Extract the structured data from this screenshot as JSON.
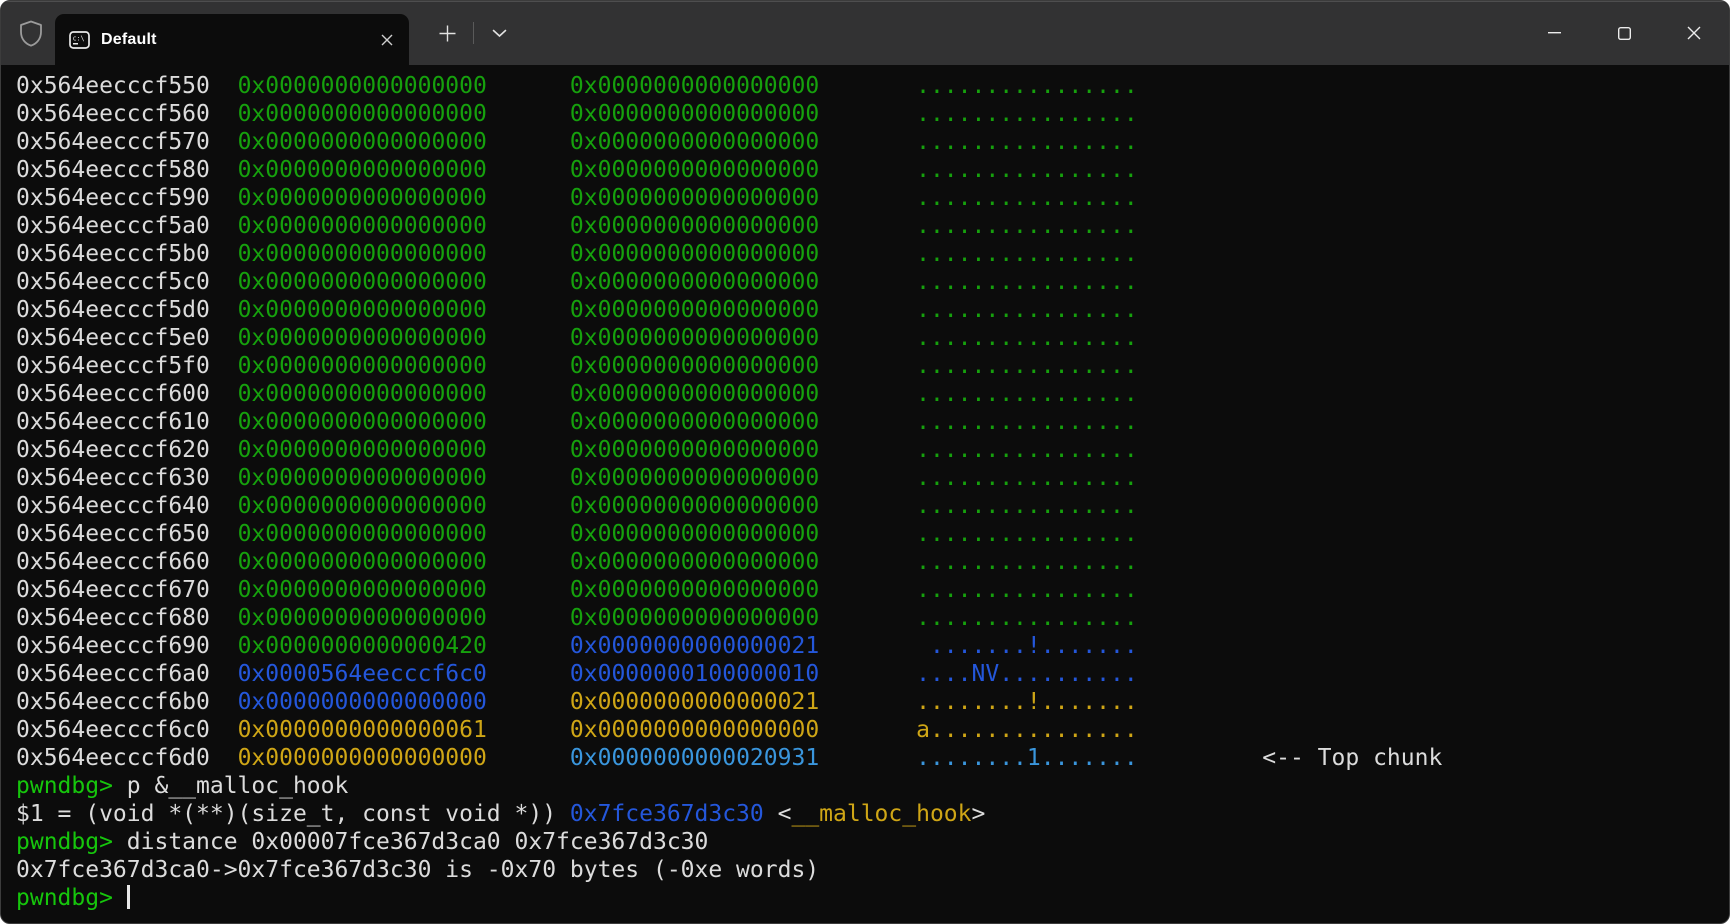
{
  "colors": {
    "bg": "#0C0C0C",
    "titlebar": "#323233",
    "fg": "#DCDCDC",
    "green": "#16A10D",
    "pgreen": "#16C60C",
    "blue": "#2457DB",
    "lblue": "#3A96DD",
    "yellow": "#CFA616"
  },
  "titlebar": {
    "tab": {
      "title": "Default",
      "icon": "command-prompt-icon"
    },
    "icons": {
      "admin": "shield-icon",
      "tab_close": "close-icon",
      "new_tab": "plus-icon",
      "dropdown": "chevron-down-icon",
      "minimize": "minimize-icon",
      "maximize": "maximize-icon",
      "close": "close-icon"
    }
  },
  "terminal": {
    "columns": [
      0,
      16,
      40,
      65,
      90
    ],
    "memory_rows": [
      {
        "addr": "0x564eecccf550",
        "v1": "0x0000000000000000",
        "v1c": "green",
        "v2": "0x0000000000000000",
        "v2c": "green",
        "ascii": "................",
        "asciic": "green",
        "note": ""
      },
      {
        "addr": "0x564eecccf560",
        "v1": "0x0000000000000000",
        "v1c": "green",
        "v2": "0x0000000000000000",
        "v2c": "green",
        "ascii": "................",
        "asciic": "green",
        "note": ""
      },
      {
        "addr": "0x564eecccf570",
        "v1": "0x0000000000000000",
        "v1c": "green",
        "v2": "0x0000000000000000",
        "v2c": "green",
        "ascii": "................",
        "asciic": "green",
        "note": ""
      },
      {
        "addr": "0x564eecccf580",
        "v1": "0x0000000000000000",
        "v1c": "green",
        "v2": "0x0000000000000000",
        "v2c": "green",
        "ascii": "................",
        "asciic": "green",
        "note": ""
      },
      {
        "addr": "0x564eecccf590",
        "v1": "0x0000000000000000",
        "v1c": "green",
        "v2": "0x0000000000000000",
        "v2c": "green",
        "ascii": "................",
        "asciic": "green",
        "note": ""
      },
      {
        "addr": "0x564eecccf5a0",
        "v1": "0x0000000000000000",
        "v1c": "green",
        "v2": "0x0000000000000000",
        "v2c": "green",
        "ascii": "................",
        "asciic": "green",
        "note": ""
      },
      {
        "addr": "0x564eecccf5b0",
        "v1": "0x0000000000000000",
        "v1c": "green",
        "v2": "0x0000000000000000",
        "v2c": "green",
        "ascii": "................",
        "asciic": "green",
        "note": ""
      },
      {
        "addr": "0x564eecccf5c0",
        "v1": "0x0000000000000000",
        "v1c": "green",
        "v2": "0x0000000000000000",
        "v2c": "green",
        "ascii": "................",
        "asciic": "green",
        "note": ""
      },
      {
        "addr": "0x564eecccf5d0",
        "v1": "0x0000000000000000",
        "v1c": "green",
        "v2": "0x0000000000000000",
        "v2c": "green",
        "ascii": "................",
        "asciic": "green",
        "note": ""
      },
      {
        "addr": "0x564eecccf5e0",
        "v1": "0x0000000000000000",
        "v1c": "green",
        "v2": "0x0000000000000000",
        "v2c": "green",
        "ascii": "................",
        "asciic": "green",
        "note": ""
      },
      {
        "addr": "0x564eecccf5f0",
        "v1": "0x0000000000000000",
        "v1c": "green",
        "v2": "0x0000000000000000",
        "v2c": "green",
        "ascii": "................",
        "asciic": "green",
        "note": ""
      },
      {
        "addr": "0x564eecccf600",
        "v1": "0x0000000000000000",
        "v1c": "green",
        "v2": "0x0000000000000000",
        "v2c": "green",
        "ascii": "................",
        "asciic": "green",
        "note": ""
      },
      {
        "addr": "0x564eecccf610",
        "v1": "0x0000000000000000",
        "v1c": "green",
        "v2": "0x0000000000000000",
        "v2c": "green",
        "ascii": "................",
        "asciic": "green",
        "note": ""
      },
      {
        "addr": "0x564eecccf620",
        "v1": "0x0000000000000000",
        "v1c": "green",
        "v2": "0x0000000000000000",
        "v2c": "green",
        "ascii": "................",
        "asciic": "green",
        "note": ""
      },
      {
        "addr": "0x564eecccf630",
        "v1": "0x0000000000000000",
        "v1c": "green",
        "v2": "0x0000000000000000",
        "v2c": "green",
        "ascii": "................",
        "asciic": "green",
        "note": ""
      },
      {
        "addr": "0x564eecccf640",
        "v1": "0x0000000000000000",
        "v1c": "green",
        "v2": "0x0000000000000000",
        "v2c": "green",
        "ascii": "................",
        "asciic": "green",
        "note": ""
      },
      {
        "addr": "0x564eecccf650",
        "v1": "0x0000000000000000",
        "v1c": "green",
        "v2": "0x0000000000000000",
        "v2c": "green",
        "ascii": "................",
        "asciic": "green",
        "note": ""
      },
      {
        "addr": "0x564eecccf660",
        "v1": "0x0000000000000000",
        "v1c": "green",
        "v2": "0x0000000000000000",
        "v2c": "green",
        "ascii": "................",
        "asciic": "green",
        "note": ""
      },
      {
        "addr": "0x564eecccf670",
        "v1": "0x0000000000000000",
        "v1c": "green",
        "v2": "0x0000000000000000",
        "v2c": "green",
        "ascii": "................",
        "asciic": "green",
        "note": ""
      },
      {
        "addr": "0x564eecccf680",
        "v1": "0x0000000000000000",
        "v1c": "green",
        "v2": "0x0000000000000000",
        "v2c": "green",
        "ascii": "................",
        "asciic": "green",
        "note": ""
      },
      {
        "addr": "0x564eecccf690",
        "v1": "0x0000000000000420",
        "v1c": "green",
        "v2": "0x0000000000000021",
        "v2c": "blue",
        "ascii": " .......!.......",
        "asciic": "blue",
        "note": ""
      },
      {
        "addr": "0x564eecccf6a0",
        "v1": "0x0000564eecccf6c0",
        "v1c": "blue",
        "v2": "0x0000000100000010",
        "v2c": "blue",
        "ascii": "....NV..........",
        "asciic": "blue",
        "note": ""
      },
      {
        "addr": "0x564eecccf6b0",
        "v1": "0x0000000000000000",
        "v1c": "blue",
        "v2": "0x0000000000000021",
        "v2c": "yellow",
        "ascii": "........!.......",
        "asciic": "yellow",
        "note": ""
      },
      {
        "addr": "0x564eecccf6c0",
        "v1": "0x0000000000000061",
        "v1c": "yellow",
        "v2": "0x0000000000000000",
        "v2c": "yellow",
        "ascii": "a...............",
        "asciic": "yellow",
        "note": ""
      },
      {
        "addr": "0x564eecccf6d0",
        "v1": "0x0000000000000000",
        "v1c": "yellow",
        "v2": "0x0000000000020931",
        "v2c": "lblue",
        "ascii": "........1.......",
        "asciic": "lblue",
        "note": "<-- Top chunk"
      }
    ],
    "output_lines": [
      {
        "name": "prompt-line",
        "segs": [
          {
            "t": "pwndbg>",
            "c": "pgreen"
          },
          {
            "t": " p &__malloc_hook",
            "c": "fg"
          }
        ]
      },
      {
        "name": "output-line",
        "segs": [
          {
            "t": "$1 = (void *(**)(size_t, const void *)) ",
            "c": "fg"
          },
          {
            "t": "0x7fce367d3c30",
            "c": "blue"
          },
          {
            "t": " <",
            "c": "fg"
          },
          {
            "t": "__malloc_hook",
            "c": "yellow"
          },
          {
            "t": ">",
            "c": "fg"
          }
        ]
      },
      {
        "name": "prompt-line",
        "segs": [
          {
            "t": "pwndbg>",
            "c": "pgreen"
          },
          {
            "t": " distance 0x00007fce367d3ca0 0x7fce367d3c30",
            "c": "fg"
          }
        ]
      },
      {
        "name": "output-line",
        "segs": [
          {
            "t": "0x7fce367d3ca0->0x7fce367d3c30 is -0x70 bytes (-0xe words)",
            "c": "fg"
          }
        ]
      },
      {
        "name": "prompt-line",
        "segs": [
          {
            "t": "pwndbg>",
            "c": "pgreen"
          },
          {
            "t": " ",
            "c": "fg"
          }
        ],
        "cursor": true
      }
    ]
  }
}
